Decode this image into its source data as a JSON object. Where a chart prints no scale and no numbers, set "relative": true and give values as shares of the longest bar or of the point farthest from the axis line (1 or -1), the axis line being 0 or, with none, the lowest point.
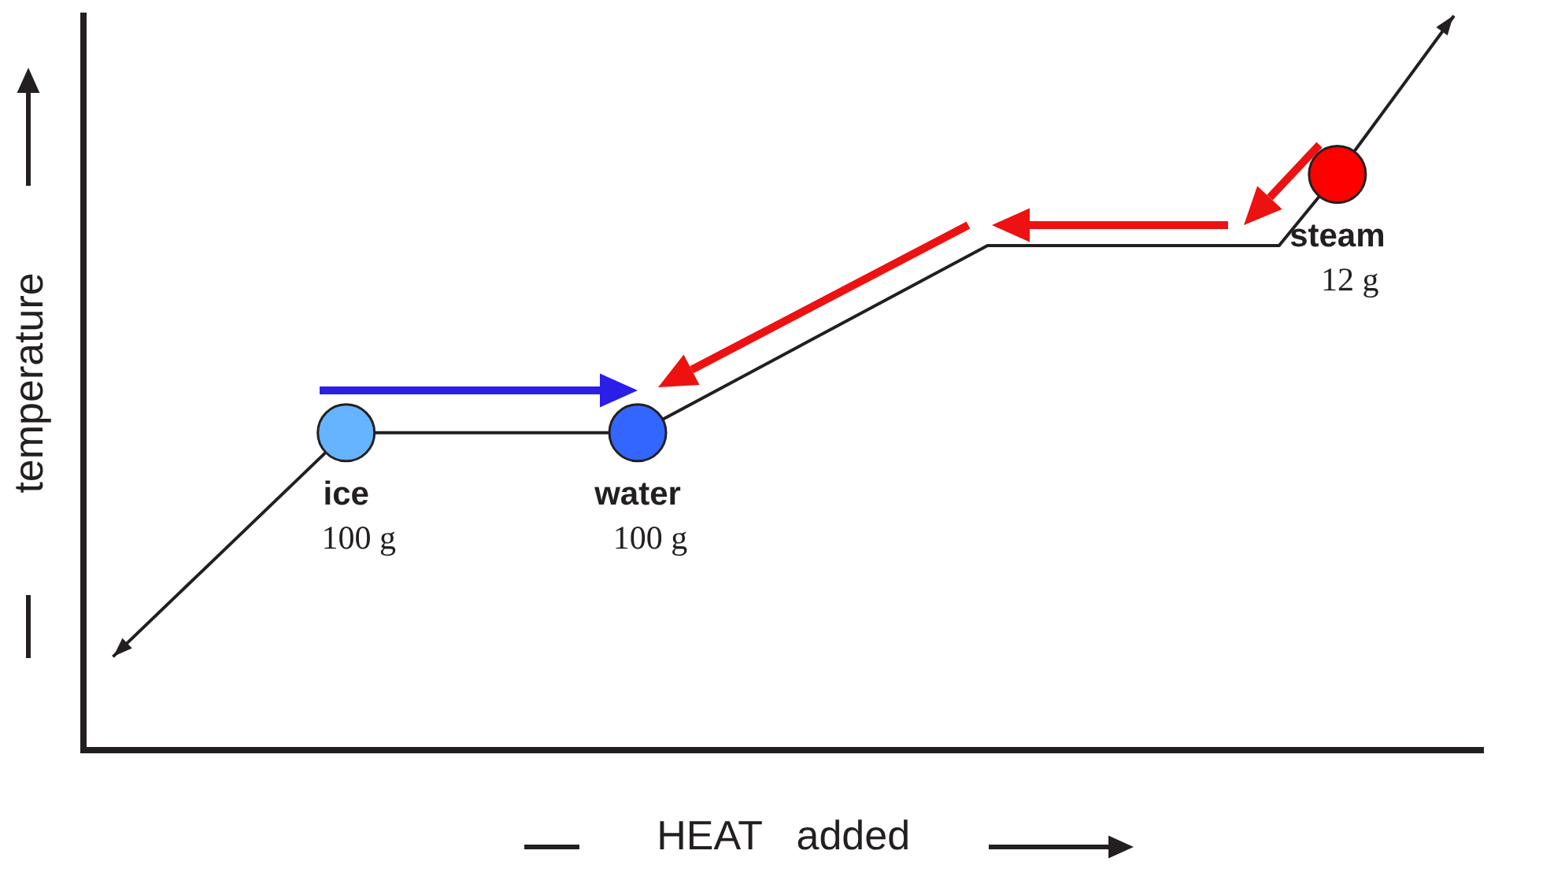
{
  "chart_data": {
    "type": "line",
    "relative": true,
    "xlabel": "HEAT   added",
    "ylabel": "temperature",
    "grid": false,
    "legend": false,
    "categories": [
      null,
      null,
      null,
      null,
      null,
      null,
      null,
      null,
      null,
      null,
      null,
      null,
      null,
      null,
      null,
      null,
      null,
      null,
      null,
      null,
      null,
      null,
      null,
      null
    ],
    "series": [
      {
        "color": "#231f20",
        "values": [
          0.127,
          null,
          null,
          null,
          0.432,
          null,
          null,
          null,
          null,
          0.432,
          null,
          null,
          null,
          null,
          null,
          0.687,
          null,
          null,
          null,
          null,
          0.687,
          0.784,
          null,
          1
        ],
        "colors": [
          null,
          null,
          null,
          null,
          "#66b3ff",
          null,
          null,
          null,
          null,
          "#3366ff",
          null,
          null,
          null,
          null,
          null,
          null,
          null,
          null,
          null,
          null,
          null,
          "#ff0000",
          null,
          null
        ]
      }
    ],
    "annotations": [
      "ice",
      "100 g",
      "water",
      "100 g",
      "steam",
      "12 g"
    ]
  }
}
